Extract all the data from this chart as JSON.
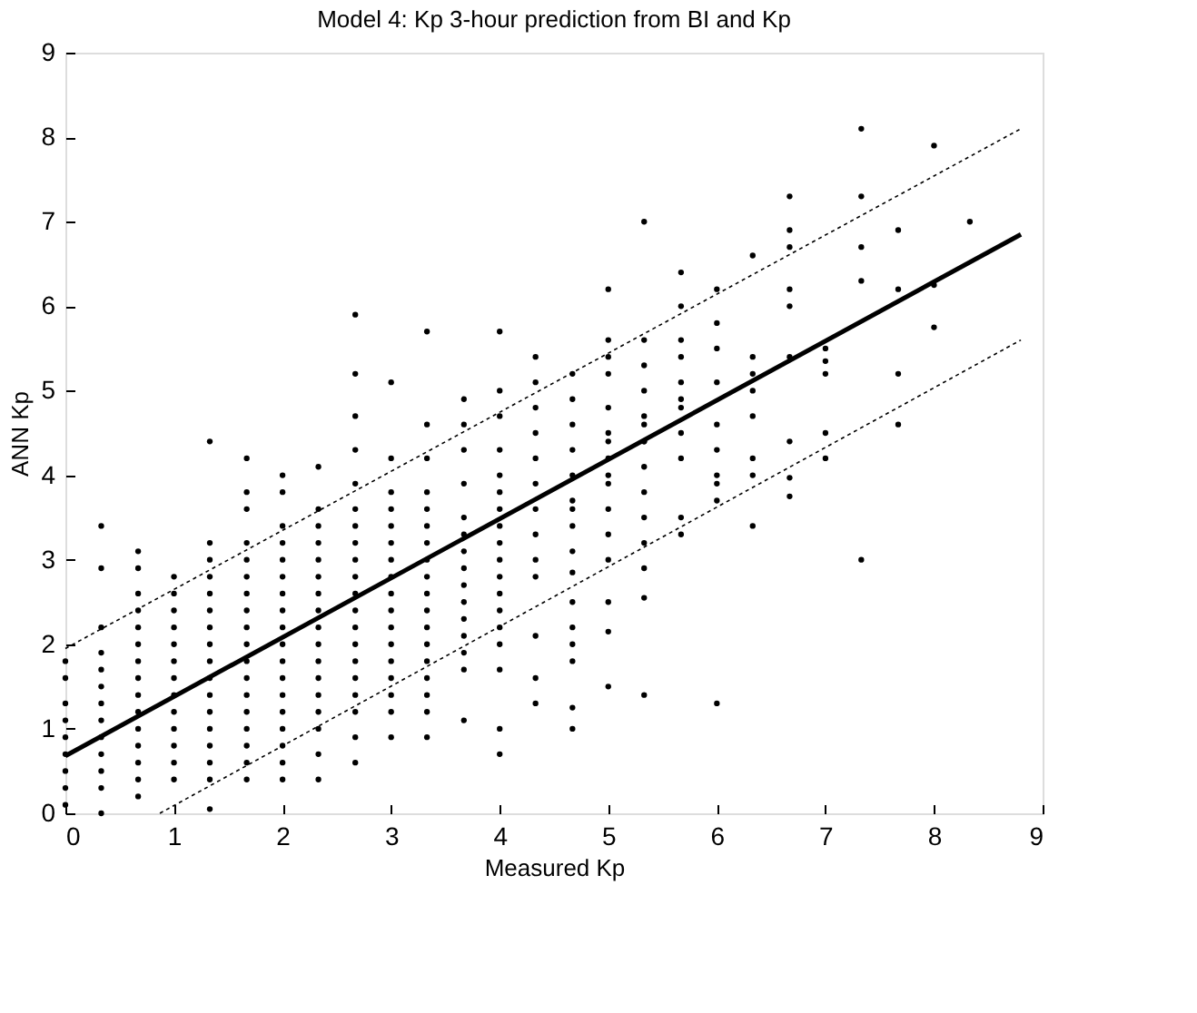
{
  "chart_data": {
    "type": "scatter",
    "title": "Model 4: Kp 3-hour prediction from BI and Kp",
    "xlabel": "Measured Kp",
    "ylabel": "ANN Kp",
    "xlim": [
      0,
      9
    ],
    "ylim": [
      0,
      9
    ],
    "xticks": [
      0,
      1,
      2,
      3,
      4,
      5,
      6,
      7,
      8,
      9
    ],
    "yticks": [
      0,
      1,
      2,
      3,
      4,
      5,
      6,
      7,
      8,
      9
    ],
    "grid": false,
    "series": [
      {
        "marker": "circle",
        "color": "#000000",
        "x": [
          0,
          0,
          0,
          0,
          0,
          0,
          0,
          0,
          0,
          0.33,
          0.33,
          0.33,
          0.33,
          0.33,
          0.33,
          0.33,
          0.33,
          0.33,
          0.33,
          0.33,
          0.33,
          0.33,
          0.67,
          0.67,
          0.67,
          0.67,
          0.67,
          0.67,
          0.67,
          0.67,
          0.67,
          0.67,
          0.67,
          0.67,
          0.67,
          0.67,
          0.67,
          1,
          1,
          1,
          1,
          1,
          1,
          1,
          1,
          1,
          1,
          1,
          1,
          1,
          1.33,
          1.33,
          1.33,
          1.33,
          1.33,
          1.33,
          1.33,
          1.33,
          1.33,
          1.33,
          1.33,
          1.33,
          1.33,
          1.33,
          1.33,
          1.33,
          1.33,
          1.67,
          1.67,
          1.67,
          1.67,
          1.67,
          1.67,
          1.67,
          1.67,
          1.67,
          1.67,
          1.67,
          1.67,
          1.67,
          1.67,
          1.67,
          1.67,
          1.67,
          1.67,
          2,
          2,
          2,
          2,
          2,
          2,
          2,
          2,
          2,
          2,
          2,
          2,
          2,
          2,
          2,
          2,
          2,
          2,
          2.33,
          2.33,
          2.33,
          2.33,
          2.33,
          2.33,
          2.33,
          2.33,
          2.33,
          2.33,
          2.33,
          2.33,
          2.33,
          2.33,
          2.33,
          2.33,
          2.33,
          2.67,
          2.67,
          2.67,
          2.67,
          2.67,
          2.67,
          2.67,
          2.67,
          2.67,
          2.67,
          2.67,
          2.67,
          2.67,
          2.67,
          2.67,
          2.67,
          2.67,
          2.67,
          2.67,
          2.67,
          3,
          3,
          3,
          3,
          3,
          3,
          3,
          3,
          3,
          3,
          3,
          3,
          3,
          3,
          3,
          3,
          3,
          3.33,
          3.33,
          3.33,
          3.33,
          3.33,
          3.33,
          3.33,
          3.33,
          3.33,
          3.33,
          3.33,
          3.33,
          3.33,
          3.33,
          3.33,
          3.33,
          3.33,
          3.33,
          3.67,
          3.67,
          3.67,
          3.67,
          3.67,
          3.67,
          3.67,
          3.67,
          3.67,
          3.67,
          3.67,
          3.67,
          3.67,
          3.67,
          3.67,
          4,
          4,
          4,
          4,
          4,
          4,
          4,
          4,
          4,
          4,
          4,
          4,
          4,
          4,
          4,
          4,
          4,
          4,
          4.33,
          4.33,
          4.33,
          4.33,
          4.33,
          4.33,
          4.33,
          4.33,
          4.33,
          4.33,
          4.33,
          4.33,
          4.33,
          4.67,
          4.67,
          4.67,
          4.67,
          4.67,
          4.67,
          4.67,
          4.67,
          4.67,
          4.67,
          4.67,
          4.67,
          4.67,
          4.67,
          4.67,
          4.67,
          5,
          5,
          5,
          5,
          5,
          5,
          5,
          5,
          5,
          5,
          5,
          5,
          5,
          5,
          5,
          5,
          5.33,
          5.33,
          5.33,
          5.33,
          5.33,
          5.33,
          5.33,
          5.33,
          5.33,
          5.33,
          5.33,
          5.33,
          5.33,
          5.33,
          5.33,
          5.67,
          5.67,
          5.67,
          5.67,
          5.67,
          5.67,
          5.67,
          5.67,
          5.67,
          5.67,
          5.67,
          6,
          6,
          6,
          6,
          6,
          6,
          6,
          6,
          6,
          6,
          6.33,
          6.33,
          6.33,
          6.33,
          6.33,
          6.33,
          6.33,
          6.33,
          6.67,
          6.67,
          6.67,
          6.67,
          6.67,
          6.67,
          6.67,
          6.67,
          6.67,
          7,
          7,
          7,
          7,
          7,
          7.33,
          7.33,
          7.33,
          7.33,
          7.33,
          7.67,
          7.67,
          7.67,
          7.67,
          8,
          8,
          8,
          8.33
        ],
        "values": [
          0.1,
          0.3,
          0.5,
          0.7,
          0.9,
          1.1,
          1.3,
          1.6,
          1.8,
          0.0,
          0.3,
          0.5,
          0.7,
          0.9,
          1.1,
          1.3,
          1.5,
          1.7,
          1.9,
          2.2,
          2.9,
          3.4,
          0.2,
          0.4,
          0.6,
          0.8,
          1.0,
          1.2,
          1.4,
          1.6,
          1.8,
          2.0,
          2.2,
          2.4,
          2.6,
          2.9,
          3.1,
          0.4,
          0.6,
          0.8,
          1.0,
          1.2,
          1.4,
          1.6,
          1.8,
          2.0,
          2.2,
          2.4,
          2.6,
          2.8,
          0.05,
          0.4,
          0.6,
          0.8,
          1.0,
          1.2,
          1.4,
          1.6,
          1.8,
          2.0,
          2.2,
          2.4,
          2.6,
          2.8,
          3.0,
          3.2,
          4.4,
          0.4,
          0.6,
          0.8,
          1.0,
          1.2,
          1.4,
          1.6,
          1.8,
          2.0,
          2.2,
          2.4,
          2.6,
          2.8,
          3.0,
          3.2,
          3.6,
          3.8,
          4.2,
          0.4,
          0.6,
          0.8,
          1.0,
          1.2,
          1.4,
          1.6,
          1.8,
          2.0,
          2.2,
          2.4,
          2.6,
          2.8,
          3.0,
          3.2,
          3.4,
          3.8,
          4.0,
          0.4,
          0.7,
          1.0,
          1.2,
          1.4,
          1.6,
          1.8,
          2.0,
          2.2,
          2.4,
          2.6,
          2.8,
          3.0,
          3.2,
          3.4,
          3.6,
          4.1,
          0.6,
          0.9,
          1.2,
          1.4,
          1.6,
          1.8,
          2.0,
          2.2,
          2.4,
          2.6,
          2.8,
          3.0,
          3.2,
          3.4,
          3.6,
          3.9,
          4.3,
          4.7,
          5.2,
          5.9,
          0.9,
          1.2,
          1.4,
          1.6,
          1.8,
          2.0,
          2.2,
          2.4,
          2.6,
          2.8,
          3.0,
          3.2,
          3.4,
          3.6,
          3.8,
          4.2,
          5.1,
          0.9,
          1.2,
          1.4,
          1.6,
          1.8,
          2.0,
          2.2,
          2.4,
          2.6,
          2.8,
          3.0,
          3.2,
          3.4,
          3.6,
          3.8,
          4.2,
          4.6,
          5.7,
          1.1,
          1.7,
          1.9,
          2.1,
          2.3,
          2.5,
          2.7,
          2.9,
          3.1,
          3.3,
          3.5,
          3.9,
          4.3,
          4.6,
          4.9,
          0.7,
          1.0,
          1.7,
          2.0,
          2.2,
          2.4,
          2.6,
          2.8,
          3.0,
          3.2,
          3.4,
          3.6,
          3.8,
          4.0,
          4.3,
          4.7,
          5.0,
          5.7,
          1.6,
          2.1,
          2.8,
          3.0,
          3.3,
          3.6,
          3.9,
          4.2,
          4.5,
          4.8,
          5.1,
          5.4,
          1.3,
          1.0,
          1.25,
          1.8,
          2.2,
          2.5,
          2.85,
          3.1,
          3.4,
          3.7,
          4.0,
          4.3,
          4.6,
          4.9,
          5.2,
          2.0,
          3.6,
          1.5,
          2.15,
          2.5,
          3.0,
          3.3,
          3.6,
          3.9,
          4.2,
          4.5,
          4.8,
          5.2,
          5.4,
          5.6,
          6.2,
          4.0,
          4.4,
          1.4,
          2.55,
          2.9,
          3.5,
          3.8,
          4.1,
          4.4,
          4.7,
          5.0,
          5.3,
          5.6,
          7.0,
          4.4,
          4.6,
          3.2,
          3.5,
          3.3,
          4.2,
          4.5,
          4.8,
          4.9,
          5.1,
          5.4,
          5.6,
          6.0,
          6.4,
          1.3,
          3.7,
          3.9,
          4.3,
          4.6,
          5.1,
          5.5,
          5.8,
          6.2,
          4.0,
          3.4,
          4.0,
          4.2,
          4.7,
          5.0,
          5.2,
          5.4,
          6.6,
          3.75,
          3.97,
          4.4,
          5.4,
          6.0,
          6.2,
          6.7,
          6.9,
          7.3,
          4.2,
          4.5,
          5.2,
          5.35,
          5.5,
          3.0,
          6.3,
          6.7,
          7.3,
          8.1,
          4.6,
          5.2,
          6.2,
          6.9,
          5.75,
          6.25,
          7.9,
          7.0
        ]
      },
      {
        "type": "line",
        "color": "#000000",
        "line_style": "solid",
        "x": [
          0,
          8.8
        ],
        "values": [
          0.68,
          6.85
        ]
      },
      {
        "type": "line",
        "color": "#000000",
        "line_style": "dotted",
        "x": [
          0,
          8.8
        ],
        "values": [
          1.95,
          8.1
        ]
      },
      {
        "type": "line",
        "color": "#000000",
        "line_style": "dotted",
        "x": [
          0.87,
          8.8
        ],
        "values": [
          0,
          5.6
        ]
      }
    ]
  }
}
